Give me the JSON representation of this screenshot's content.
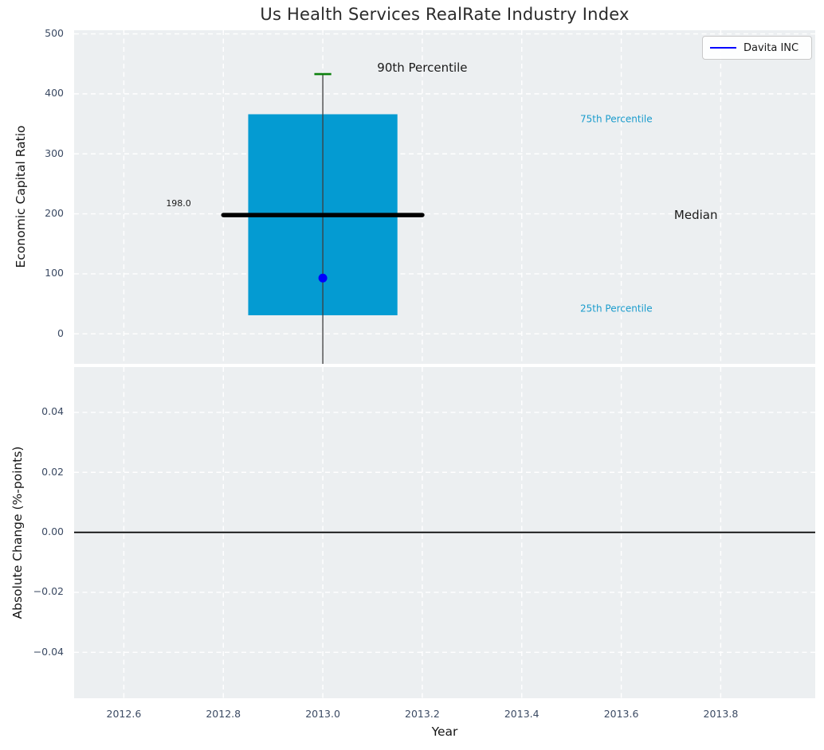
{
  "title": "Us Health Services RealRate Industry Index",
  "legend": {
    "label": "Davita INC",
    "line_color": "#0000ff"
  },
  "colors": {
    "figure_bg": "#ffffff",
    "axes_bg": "#ECEFF1",
    "grid": "#ffffff",
    "box_fill": "#049BD2",
    "median_line": "#000000",
    "whisker": "#3d3d3d",
    "cap": "#0b800b",
    "company_point": "#0000ff",
    "tick_label": "#3B4A63",
    "percentile_label": "#1B9CCD",
    "annotation_text": "#1a1a1a",
    "zero_line": "#000000"
  },
  "chart_data": [
    {
      "type": "boxplot",
      "title": "Us Health Services RealRate Industry Index",
      "ylabel": "Economic Capital Ratio",
      "xlim": [
        2012.5,
        2013.99
      ],
      "ylim": [
        -50,
        506
      ],
      "ytick_values": [
        0,
        100,
        200,
        300,
        400,
        500
      ],
      "ytick_labels": [
        "0",
        "100",
        "200",
        "300",
        "400",
        "500"
      ],
      "grid": true,
      "legend_position": "upper right",
      "box": {
        "x": 2013.0,
        "q25": 31,
        "median": 198,
        "q75": 366,
        "p90": 433,
        "whisker_low_clipped_at": -50,
        "box_halfwidth": 0.15,
        "median_halfwidth": 0.2,
        "cap_halfwidth": 0.017,
        "median_label": "198.0"
      },
      "company_point": {
        "name": "Davita INC",
        "x": 2013.0,
        "y": 93
      },
      "annotations": [
        {
          "id": "p90-label",
          "text": "90th Percentile",
          "x": 2013.2,
          "y": 444,
          "size": 15,
          "color": "#1a1a1a"
        },
        {
          "id": "p75-label",
          "text": "75th Percentile",
          "x": 2013.59,
          "y": 358,
          "size": 12,
          "color": "#1B9CCD"
        },
        {
          "id": "median-label",
          "text": "Median",
          "x": 2013.75,
          "y": 198,
          "size": 15,
          "color": "#1a1a1a"
        },
        {
          "id": "p25-label",
          "text": "25th Percentile",
          "x": 2013.59,
          "y": 41,
          "size": 12,
          "color": "#1B9CCD"
        },
        {
          "id": "median-value",
          "text": "198.0",
          "x": 2012.71,
          "y": 217,
          "size": 11,
          "color": "#1a1a1a"
        }
      ]
    },
    {
      "type": "line",
      "ylabel": "Absolute Change (%-points)",
      "xlabel": "Year",
      "xlim": [
        2012.5,
        2013.99
      ],
      "ylim": [
        -0.0553,
        0.0551
      ],
      "ytick_values": [
        0.04,
        0.02,
        0,
        -0.02,
        -0.04
      ],
      "ytick_labels": [
        "0.04",
        "0.02",
        "0.00",
        "−0.02",
        "−0.04"
      ],
      "xtick_values": [
        2012.6,
        2012.8,
        2013.0,
        2013.2,
        2013.4,
        2013.6,
        2013.8
      ],
      "xtick_labels": [
        "2012.6",
        "2012.8",
        "2013.0",
        "2013.2",
        "2013.4",
        "2013.6",
        "2013.8"
      ],
      "zero_line": 0,
      "grid": true
    }
  ]
}
